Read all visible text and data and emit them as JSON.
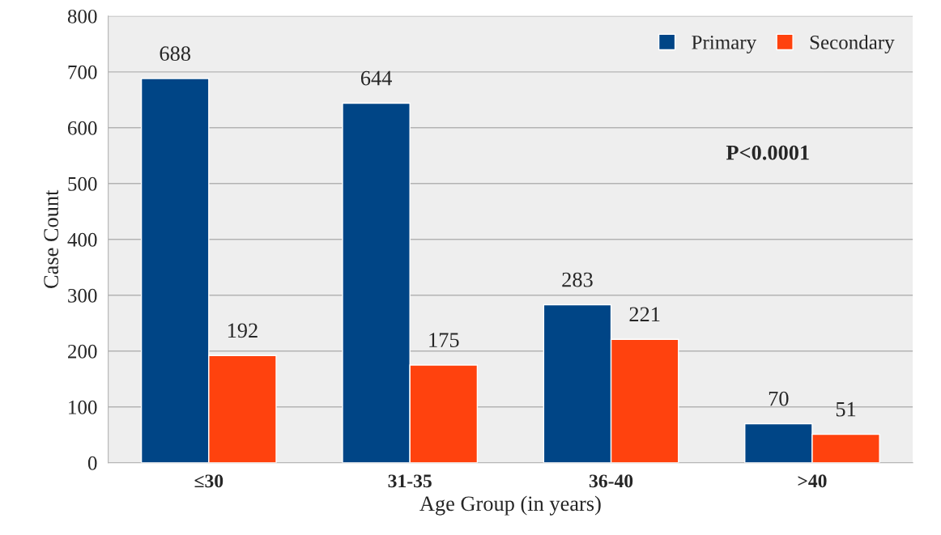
{
  "chart_data": {
    "type": "bar",
    "xlabel": "Age Group (in years)",
    "ylabel": "Case Count",
    "categories": [
      "≤30",
      "31-35",
      "36-40",
      ">40"
    ],
    "series": [
      {
        "name": "Primary",
        "color": "#004586",
        "values": [
          688,
          644,
          283,
          70
        ]
      },
      {
        "name": "Secondary",
        "color": "#ff420e",
        "values": [
          192,
          175,
          221,
          51
        ]
      }
    ],
    "ylim": [
      0,
      800
    ],
    "yticks": [
      0,
      100,
      200,
      300,
      400,
      500,
      600,
      700,
      800
    ],
    "grid": "y",
    "legend": "top right",
    "data_labels": true,
    "annotations": [
      "P<0.0001"
    ]
  }
}
